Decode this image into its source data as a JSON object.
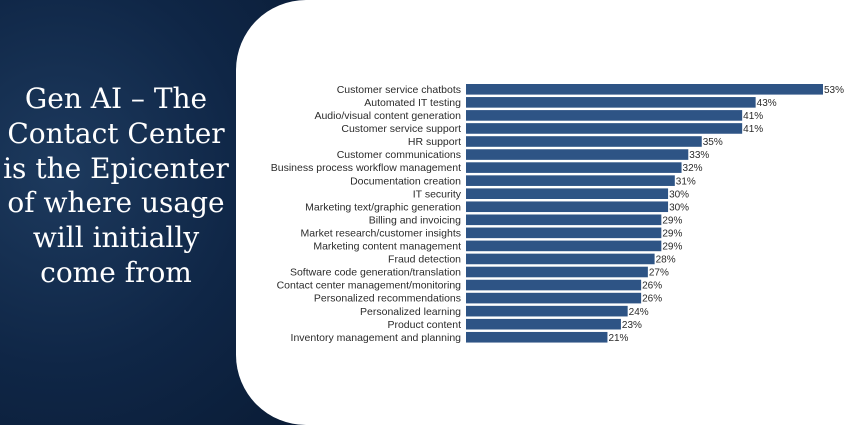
{
  "slide": {
    "title": "Gen AI – The Contact Center is the Epicenter of where usage will initially come from"
  },
  "colors": {
    "bar": "#2e5485",
    "background": "#0d2140",
    "card": "#ffffff"
  },
  "chart_data": {
    "type": "bar",
    "orientation": "horizontal",
    "categories": [
      "Customer service chatbots",
      "Automated IT testing",
      "Audio/visual content generation",
      "Customer service support",
      "HR support",
      "Customer communications",
      "Business process workflow management",
      "Documentation creation",
      "IT security",
      "Marketing text/graphic generation",
      "Billing and invoicing",
      "Market research/customer insights",
      "Marketing content management",
      "Fraud detection",
      "Software code generation/translation",
      "Contact center management/monitoring",
      "Personalized recommendations",
      "Personalized learning",
      "Product content",
      "Inventory management and planning"
    ],
    "values": [
      53,
      43,
      41,
      41,
      35,
      33,
      32,
      31,
      30,
      30,
      29,
      29,
      29,
      28,
      27,
      26,
      26,
      24,
      23,
      21
    ],
    "value_labels": [
      "53%",
      "43%",
      "41%",
      "41%",
      "35%",
      "33%",
      "32%",
      "31%",
      "30%",
      "30%",
      "29%",
      "29%",
      "29%",
      "28%",
      "27%",
      "26%",
      "26%",
      "24%",
      "23%",
      "21%"
    ],
    "xlim": [
      0,
      53
    ],
    "grid": false,
    "legend": false
  }
}
